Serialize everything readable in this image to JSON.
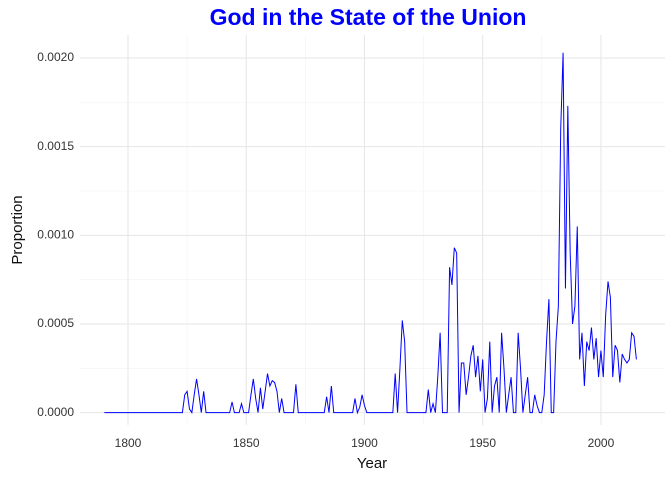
{
  "chart_data": {
    "type": "line",
    "title": "God in the State of the Union",
    "title_color": "#0000ff",
    "x_label": "Year",
    "y_label": "Proportion",
    "x": [
      1790,
      1823,
      1824,
      1825,
      1826,
      1827,
      1828,
      1829,
      1830,
      1831,
      1832,
      1833,
      1843,
      1844,
      1845,
      1847,
      1848,
      1849,
      1851,
      1852,
      1853,
      1854,
      1855,
      1856,
      1857,
      1858,
      1859,
      1860,
      1861,
      1862,
      1863,
      1864,
      1865,
      1866,
      1870,
      1871,
      1872,
      1883,
      1884,
      1885,
      1886,
      1887,
      1895,
      1896,
      1897,
      1898,
      1899,
      1900,
      1901,
      1912,
      1913,
      1914,
      1915,
      1916,
      1917,
      1918,
      1926,
      1927,
      1928,
      1929,
      1930,
      1931,
      1932,
      1933,
      1935,
      1936,
      1937,
      1938,
      1939,
      1940,
      1941,
      1942,
      1943,
      1944,
      1945,
      1946,
      1947,
      1948,
      1949,
      1950,
      1951,
      1952,
      1953,
      1954,
      1955,
      1956,
      1957,
      1958,
      1959,
      1960,
      1961,
      1962,
      1963,
      1964,
      1965,
      1966,
      1967,
      1968,
      1969,
      1970,
      1971,
      1972,
      1973,
      1974,
      1975,
      1976,
      1977,
      1978,
      1979,
      1980,
      1981,
      1982,
      1983,
      1984,
      1985,
      1986,
      1987,
      1988,
      1989,
      1990,
      1991,
      1992,
      1993,
      1994,
      1995,
      1996,
      1997,
      1998,
      1999,
      2000,
      2001,
      2002,
      2003,
      2004,
      2005,
      2006,
      2007,
      2008,
      2009,
      2010,
      2011,
      2012,
      2013,
      2014,
      2015
    ],
    "series": [
      {
        "name": "God",
        "color": "#0000ff",
        "values": [
          0,
          0,
          0.0001,
          0.00012,
          2e-05,
          0,
          0.0001,
          0.00019,
          0.0001,
          0,
          0.00012,
          0,
          0,
          6e-05,
          0,
          0,
          5e-05,
          0,
          0,
          0.0001,
          0.00019,
          8e-05,
          0,
          0.00014,
          2e-05,
          0.00012,
          0.00022,
          0.00015,
          0.00018,
          0.00017,
          0.00012,
          0,
          8e-05,
          0,
          0,
          0.00016,
          0,
          0,
          9e-05,
          0,
          0.00015,
          0,
          0,
          8e-05,
          0,
          3e-05,
          0.0001,
          4e-05,
          0,
          0,
          0.00022,
          0,
          0.00025,
          0.00052,
          0.0004,
          0,
          0,
          0.00013,
          0,
          5e-05,
          0,
          0.0002,
          0.00045,
          0,
          0,
          0.00082,
          0.00072,
          0.00093,
          0.0009,
          0,
          0.00028,
          0.00028,
          0.0001,
          0.0002,
          0.00032,
          0.00038,
          0.0002,
          0.00032,
          0.00012,
          0.0003,
          0,
          8e-05,
          0.0004,
          0,
          0.00015,
          0.0002,
          0,
          0.00045,
          0.00025,
          0,
          0.0001,
          0.0002,
          0,
          0,
          0.00045,
          0.00025,
          0,
          0.0001,
          0.0002,
          0,
          0,
          0.0001,
          4e-05,
          0,
          0,
          0.0001,
          0.0004,
          0.00064,
          0,
          0,
          0.0004,
          0.0006,
          0.0016,
          0.00203,
          0.0007,
          0.00173,
          0.0009,
          0.0005,
          0.0006,
          0.00105,
          0.0003,
          0.00045,
          0.00015,
          0.0004,
          0.00035,
          0.00048,
          0.0003,
          0.00042,
          0.0002,
          0.00035,
          0.0002,
          0.00055,
          0.00074,
          0.00065,
          0.0002,
          0.00038,
          0.00035,
          0.00017,
          0.00033,
          0.0003,
          0.00028,
          0.0003,
          0.00045,
          0.00043,
          0.0003
        ]
      }
    ],
    "xlim": [
      1779.7,
      2027.1
    ],
    "ylim": [
      -7e-05,
      0.00213
    ],
    "xticks": [
      1800,
      1850,
      1900,
      1950,
      2000
    ],
    "yticks": [
      {
        "value": 0,
        "label": "0.0000"
      },
      {
        "value": 0.0005,
        "label": "0.0005"
      },
      {
        "value": 0.001,
        "label": "0.0010"
      },
      {
        "value": 0.0015,
        "label": "0.0015"
      },
      {
        "value": 0.002,
        "label": "0.0020"
      }
    ],
    "grid": true
  }
}
